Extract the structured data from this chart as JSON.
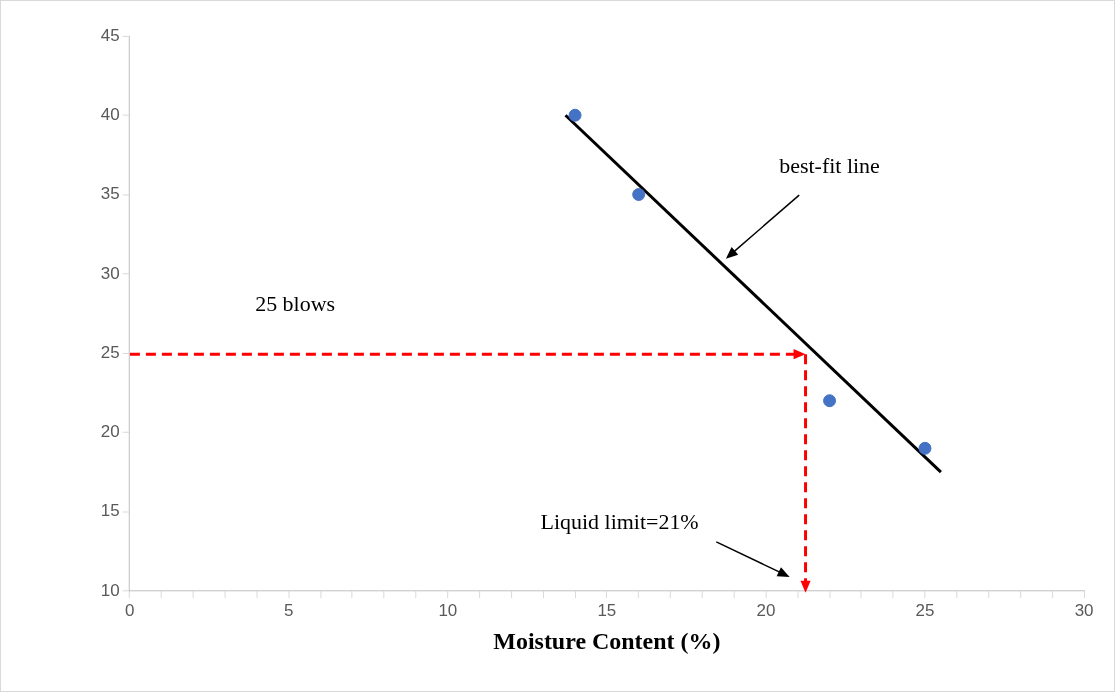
{
  "chart_data": {
    "type": "scatter",
    "xlabel": "Moisture Content (%)",
    "xlim": [
      0,
      30
    ],
    "ylim": [
      10,
      45
    ],
    "xticks": [
      0,
      {
        "value": 1,
        "label": null
      },
      {
        "value": 2,
        "label": null
      },
      {
        "value": 3,
        "label": null
      },
      {
        "value": 4,
        "label": null
      },
      5,
      {
        "value": 6,
        "label": null
      },
      {
        "value": 7,
        "label": null
      },
      {
        "value": 8,
        "label": null
      },
      {
        "value": 9,
        "label": null
      },
      10,
      {
        "value": 11,
        "label": null
      },
      {
        "value": 12,
        "label": null
      },
      {
        "value": 13,
        "label": null
      },
      {
        "value": 14,
        "label": null
      },
      15,
      {
        "value": 16,
        "label": null
      },
      {
        "value": 17,
        "label": null
      },
      {
        "value": 18,
        "label": null
      },
      {
        "value": 19,
        "label": null
      },
      20,
      {
        "value": 21,
        "label": null
      },
      {
        "value": 22,
        "label": null
      },
      {
        "value": 23,
        "label": null
      },
      {
        "value": 24,
        "label": null
      },
      25,
      {
        "value": 26,
        "label": null
      },
      {
        "value": 27,
        "label": null
      },
      {
        "value": 28,
        "label": null
      },
      {
        "value": 29,
        "label": null
      },
      30
    ],
    "yticks": [
      10,
      15,
      20,
      25,
      30,
      35,
      40,
      45
    ],
    "grid": false,
    "legend": false,
    "marker": "circle",
    "series": [
      {
        "color": "#4472c4",
        "x": [
          14,
          16,
          22,
          25
        ],
        "values": [
          40,
          35,
          22,
          19
        ]
      },
      {
        "type": "line",
        "color": "#000000",
        "marker": "none",
        "line_style": "solid",
        "x": [
          13.7,
          25.5
        ],
        "values": [
          40,
          17.5
        ]
      }
    ],
    "annotations": [
      "best-fit line",
      "25 blows",
      "Liquid limit=21%"
    ]
  }
}
